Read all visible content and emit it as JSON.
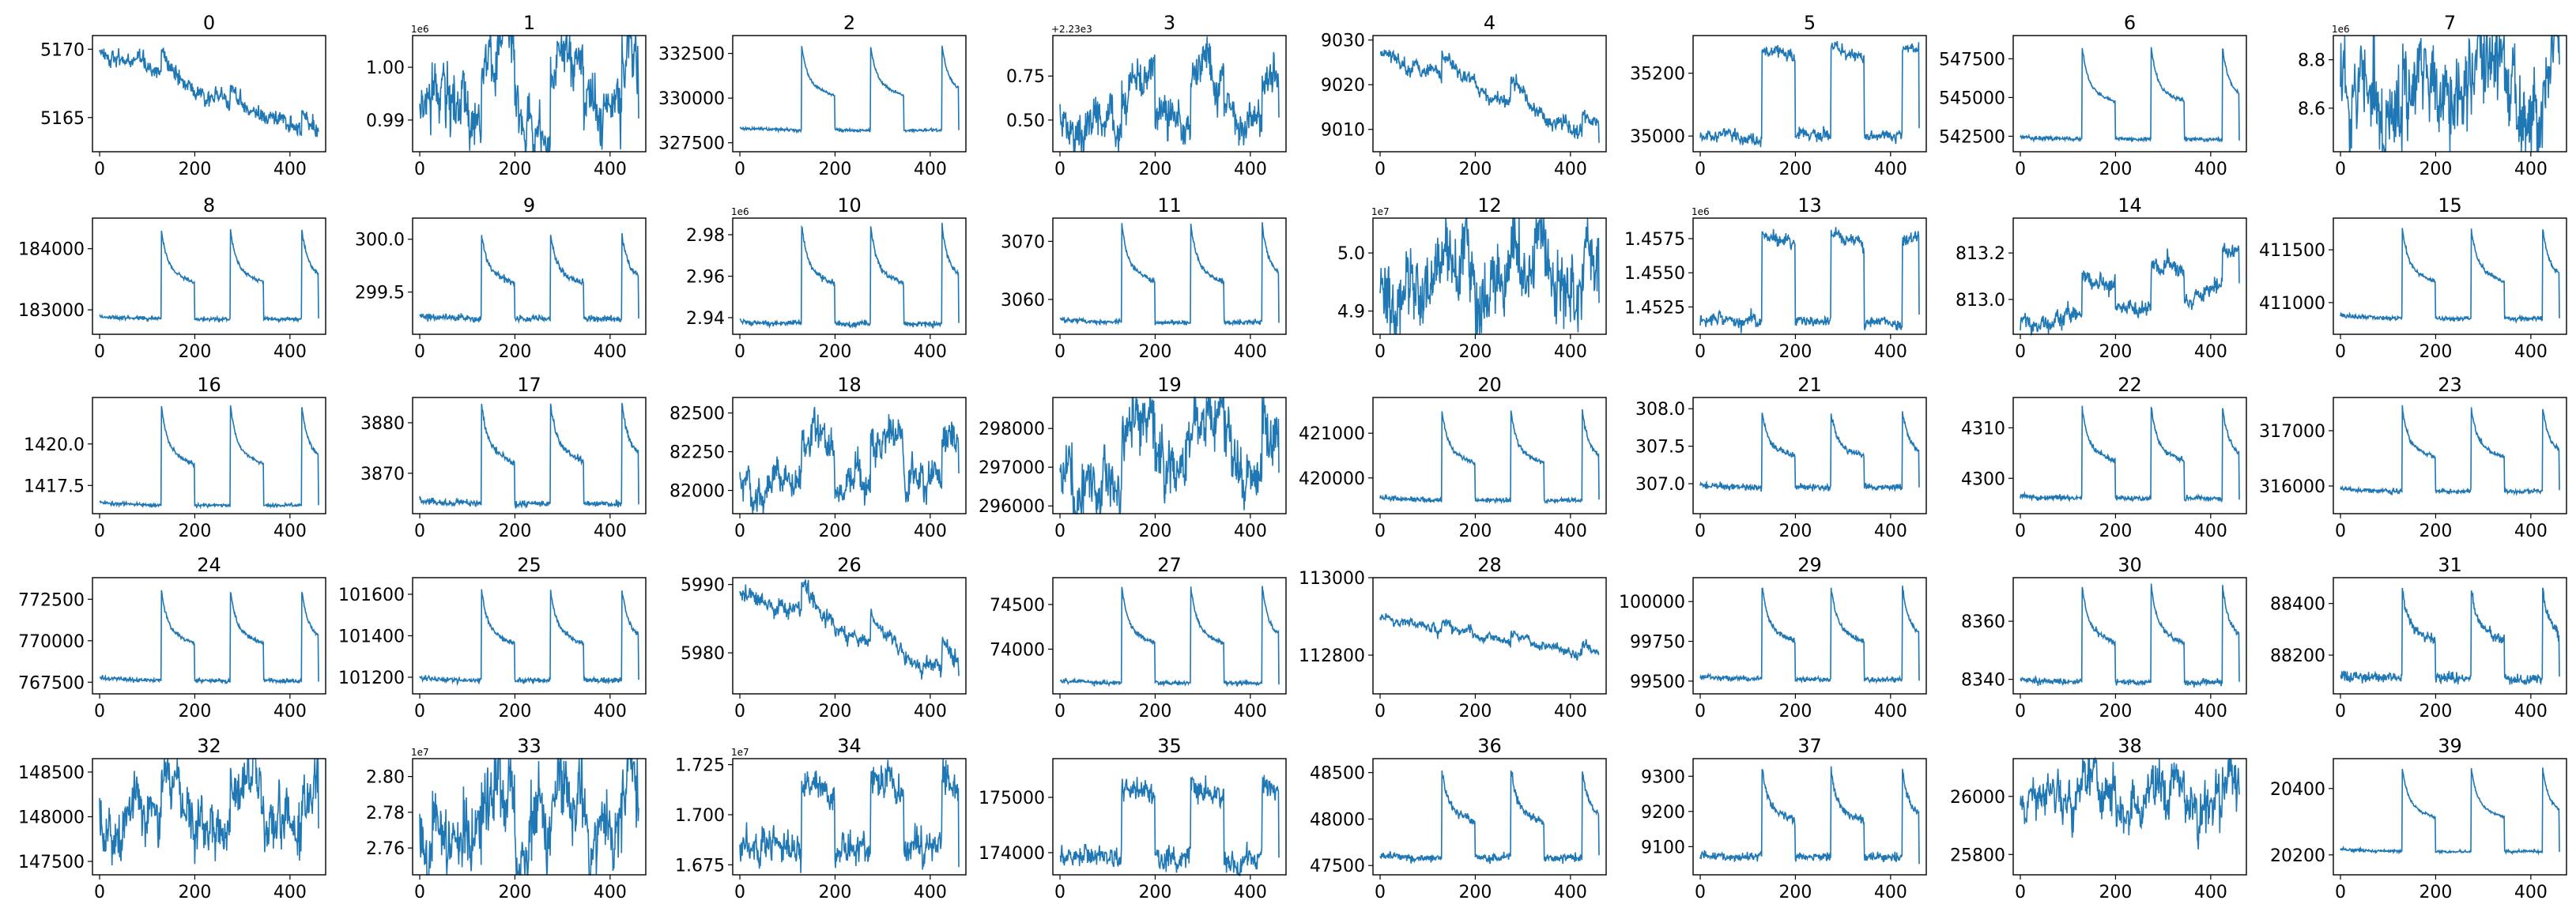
{
  "chart_data": {
    "type": "line",
    "layout": "grid 5 rows x 8 columns",
    "series_color": "#1f77b4",
    "x_range": [
      0,
      460
    ],
    "panels": [
      {
        "title": "0",
        "ylim": [
          5162.5,
          5171
        ],
        "yticks": [
          5165,
          5170
        ],
        "ytick_labels": [
          "5165",
          "5170"
        ],
        "offset_label": "",
        "shape": "drift",
        "params": {
          "start": 5169.8,
          "end": 5163.5,
          "amp": 1.5,
          "noise": 0.25
        }
      },
      {
        "title": "1",
        "ylim": [
          0.984,
          1.006
        ],
        "yticks": [
          0.99,
          1.0
        ],
        "ytick_labels": [
          "0.99",
          "1.00"
        ],
        "offset_label": "1e6",
        "shape": "noisy_plateau",
        "params": {
          "base": 0.9925,
          "amp": 0.009,
          "noise": 0.0018
        }
      },
      {
        "title": "2",
        "ylim": [
          327000,
          333500
        ],
        "yticks": [
          327500,
          330000,
          332500
        ],
        "ytick_labels": [
          "327500",
          "330000",
          "332500"
        ],
        "offset_label": "",
        "shape": "spike_decay",
        "params": {
          "base": 328200,
          "peak": 332900,
          "noise": 40
        }
      },
      {
        "title": "3",
        "ylim": [
          0.32,
          0.98
        ],
        "yticks": [
          0.5,
          0.75
        ],
        "ytick_labels": [
          "0.50",
          "0.75"
        ],
        "offset_label": "+2.23e3",
        "shape": "noisy_plateau",
        "params": {
          "base": 0.5,
          "amp": 0.28,
          "noise": 0.04
        }
      },
      {
        "title": "4",
        "ylim": [
          9005,
          9031
        ],
        "yticks": [
          9010,
          9020,
          9030
        ],
        "ytick_labels": [
          "9010",
          "9020",
          "9030"
        ],
        "offset_label": "",
        "shape": "sawtooth",
        "params": {
          "start": 9027,
          "end": 9008,
          "amp": 5,
          "noise": 0.7
        }
      },
      {
        "title": "5",
        "ylim": [
          34950,
          35320
        ],
        "yticks": [
          35000,
          35200
        ],
        "ytick_labels": [
          "35000",
          "35200"
        ],
        "offset_label": "",
        "shape": "square_wave",
        "params": {
          "base": 35000,
          "amp": 280,
          "noise": 8
        }
      },
      {
        "title": "6",
        "ylim": [
          541500,
          549000
        ],
        "yticks": [
          542500,
          545000,
          547500
        ],
        "ytick_labels": [
          "542500",
          "545000",
          "547500"
        ],
        "offset_label": "",
        "shape": "spike_decay",
        "params": {
          "base": 542300,
          "peak": 548200,
          "noise": 60
        }
      },
      {
        "title": "7",
        "ylim": [
          8.42,
          8.9
        ],
        "yticks": [
          8.6,
          8.8
        ],
        "ytick_labels": [
          "8.6",
          "8.8"
        ],
        "offset_label": "1e6",
        "shape": "noisy_plateau",
        "params": {
          "base": 8.62,
          "amp": 0.13,
          "noise": 0.06
        }
      },
      {
        "title": "8",
        "ylim": [
          182600,
          184500
        ],
        "yticks": [
          183000,
          184000
        ],
        "ytick_labels": [
          "183000",
          "184000"
        ],
        "offset_label": "",
        "shape": "spike_decay",
        "params": {
          "base": 182850,
          "peak": 184300,
          "noise": 15
        }
      },
      {
        "title": "9",
        "ylim": [
          299.1,
          300.2
        ],
        "yticks": [
          299.5,
          300.0
        ],
        "ytick_labels": [
          "299.5",
          "300.0"
        ],
        "offset_label": "",
        "shape": "spike_decay",
        "params": {
          "base": 299.25,
          "peak": 300.05,
          "noise": 0.015
        }
      },
      {
        "title": "10",
        "ylim": [
          2.932,
          2.988
        ],
        "yticks": [
          2.94,
          2.96,
          2.98
        ],
        "ytick_labels": [
          "2.94",
          "2.96",
          "2.98"
        ],
        "offset_label": "1e6",
        "shape": "spike_decay",
        "params": {
          "base": 2.937,
          "peak": 2.984,
          "noise": 0.0006
        }
      },
      {
        "title": "11",
        "ylim": [
          3054,
          3074
        ],
        "yticks": [
          3060,
          3070
        ],
        "ytick_labels": [
          "3060",
          "3070"
        ],
        "offset_label": "",
        "shape": "spike_decay",
        "params": {
          "base": 3056,
          "peak": 3073,
          "noise": 0.2
        }
      },
      {
        "title": "12",
        "ylim": [
          4.86,
          5.06
        ],
        "yticks": [
          4.9,
          5.0
        ],
        "ytick_labels": [
          "4.9",
          "5.0"
        ],
        "offset_label": "1e7",
        "shape": "noisy_plateau",
        "params": {
          "base": 4.945,
          "amp": 0.055,
          "noise": 0.022
        }
      },
      {
        "title": "13",
        "ylim": [
          1.4505,
          1.459
        ],
        "yticks": [
          1.4525,
          1.455,
          1.4575
        ],
        "ytick_labels": [
          "1.4525",
          "1.4550",
          "1.4575"
        ],
        "offset_label": "1e6",
        "shape": "square_wave",
        "params": {
          "base": 1.4515,
          "amp": 0.0062,
          "noise": 0.0002
        }
      },
      {
        "title": "14",
        "ylim": [
          812.85,
          813.35
        ],
        "yticks": [
          813.0,
          813.2
        ],
        "ytick_labels": [
          "813.0",
          "813.2"
        ],
        "offset_label": "",
        "shape": "rise_plateau",
        "params": {
          "start": 812.88,
          "end": 813.05,
          "amp": 0.17,
          "noise": 0.015
        }
      },
      {
        "title": "15",
        "ylim": [
          410700,
          411800
        ],
        "yticks": [
          411000,
          411500
        ],
        "ytick_labels": [
          "411000",
          "411500"
        ],
        "offset_label": "",
        "shape": "spike_decay",
        "params": {
          "base": 410850,
          "peak": 411700,
          "noise": 10
        }
      },
      {
        "title": "16",
        "ylim": [
          1415.8,
          1422.8
        ],
        "yticks": [
          1417.5,
          1420.0
        ],
        "ytick_labels": [
          "1417.5",
          "1420.0"
        ],
        "offset_label": "",
        "shape": "spike_decay",
        "params": {
          "base": 1416.3,
          "peak": 1422.3,
          "noise": 0.05
        }
      },
      {
        "title": "17",
        "ylim": [
          3862,
          3885
        ],
        "yticks": [
          3870,
          3880
        ],
        "ytick_labels": [
          "3870",
          "3880"
        ],
        "offset_label": "",
        "shape": "spike_decay",
        "params": {
          "base": 3864,
          "peak": 3884,
          "noise": 0.3
        }
      },
      {
        "title": "18",
        "ylim": [
          81850,
          82600
        ],
        "yticks": [
          82000,
          82250,
          82500
        ],
        "ytick_labels": [
          "82000",
          "82250",
          "82500"
        ],
        "offset_label": "",
        "shape": "noisy_plateau",
        "params": {
          "base": 82030,
          "amp": 280,
          "noise": 40
        }
      },
      {
        "title": "19",
        "ylim": [
          295800,
          298800
        ],
        "yticks": [
          296000,
          297000,
          298000
        ],
        "ytick_labels": [
          "296000",
          "297000",
          "298000"
        ],
        "offset_label": "",
        "shape": "noisy_plateau",
        "params": {
          "base": 296900,
          "amp": 1300,
          "noise": 260
        }
      },
      {
        "title": "20",
        "ylim": [
          419200,
          421800
        ],
        "yticks": [
          420000,
          421000
        ],
        "ytick_labels": [
          "420000",
          "421000"
        ],
        "offset_label": "",
        "shape": "spike_decay",
        "params": {
          "base": 419500,
          "peak": 421500,
          "noise": 25
        }
      },
      {
        "title": "21",
        "ylim": [
          306.6,
          308.15
        ],
        "yticks": [
          307.0,
          307.5,
          308.0
        ],
        "ytick_labels": [
          "307.0",
          "307.5",
          "308.0"
        ],
        "offset_label": "",
        "shape": "spike_decay",
        "params": {
          "base": 306.95,
          "peak": 307.95,
          "noise": 0.02
        }
      },
      {
        "title": "22",
        "ylim": [
          4293,
          4316
        ],
        "yticks": [
          4300,
          4310
        ],
        "ytick_labels": [
          "4300",
          "4310"
        ],
        "offset_label": "",
        "shape": "spike_decay",
        "params": {
          "base": 4296,
          "peak": 4314,
          "noise": 0.25
        }
      },
      {
        "title": "23",
        "ylim": [
          315500,
          317600
        ],
        "yticks": [
          316000,
          317000
        ],
        "ytick_labels": [
          "316000",
          "317000"
        ],
        "offset_label": "",
        "shape": "spike_decay",
        "params": {
          "base": 315900,
          "peak": 317400,
          "noise": 20
        }
      },
      {
        "title": "24",
        "ylim": [
          766800,
          773800
        ],
        "yticks": [
          767500,
          770000,
          772500
        ],
        "ytick_labels": [
          "767500",
          "770000",
          "772500"
        ],
        "offset_label": "",
        "shape": "spike_decay",
        "params": {
          "base": 767600,
          "peak": 773000,
          "noise": 60
        }
      },
      {
        "title": "25",
        "ylim": [
          101120,
          101680
        ],
        "yticks": [
          101200,
          101400,
          101600
        ],
        "ytick_labels": [
          "101200",
          "101400",
          "101600"
        ],
        "offset_label": "",
        "shape": "spike_decay",
        "params": {
          "base": 101185,
          "peak": 101620,
          "noise": 6
        }
      },
      {
        "title": "26",
        "ylim": [
          5974,
          5991
        ],
        "yticks": [
          5980,
          5990
        ],
        "ytick_labels": [
          "5980",
          "5990"
        ],
        "offset_label": "",
        "shape": "sawtooth",
        "params": {
          "start": 5989,
          "end": 5976,
          "amp": 4,
          "noise": 0.5
        }
      },
      {
        "title": "27",
        "ylim": [
          73500,
          74800
        ],
        "yticks": [
          74000,
          74500
        ],
        "ytick_labels": [
          "74000",
          "74500"
        ],
        "offset_label": "",
        "shape": "spike_decay",
        "params": {
          "base": 73620,
          "peak": 74700,
          "noise": 12
        }
      },
      {
        "title": "28",
        "ylim": [
          112700,
          113000
        ],
        "yticks": [
          112800,
          113000
        ],
        "ytick_labels": [
          "112800",
          "113000"
        ],
        "offset_label": "",
        "shape": "drift",
        "params": {
          "start": 112895,
          "end": 112800,
          "amp": 25,
          "noise": 5
        }
      },
      {
        "title": "29",
        "ylim": [
          99420,
          100150
        ],
        "yticks": [
          99500,
          99750,
          100000
        ],
        "ytick_labels": [
          "99500",
          "99750",
          "100000"
        ],
        "offset_label": "",
        "shape": "spike_decay",
        "params": {
          "base": 99510,
          "peak": 100090,
          "noise": 8
        }
      },
      {
        "title": "30",
        "ylim": [
          8335,
          8375
        ],
        "yticks": [
          8340,
          8360
        ],
        "ytick_labels": [
          "8340",
          "8360"
        ],
        "offset_label": "",
        "shape": "spike_decay",
        "params": {
          "base": 8339,
          "peak": 8372,
          "noise": 0.5
        }
      },
      {
        "title": "31",
        "ylim": [
          88050,
          88500
        ],
        "yticks": [
          88200,
          88400
        ],
        "ytick_labels": [
          "88200",
          "88400"
        ],
        "offset_label": "",
        "shape": "spike_decay",
        "params": {
          "base": 88110,
          "peak": 88460,
          "noise": 10
        }
      },
      {
        "title": "32",
        "ylim": [
          147350,
          148650
        ],
        "yticks": [
          147500,
          148000,
          148500
        ],
        "ytick_labels": [
          "147500",
          "148000",
          "148500"
        ],
        "offset_label": "",
        "shape": "noisy_plateau",
        "params": {
          "base": 147900,
          "amp": 420,
          "noise": 110
        }
      },
      {
        "title": "33",
        "ylim": [
          2.745,
          2.81
        ],
        "yticks": [
          2.76,
          2.78,
          2.8
        ],
        "ytick_labels": [
          "2.76",
          "2.78",
          "2.80"
        ],
        "offset_label": "1e7",
        "shape": "noisy_plateau",
        "params": {
          "base": 2.767,
          "amp": 0.022,
          "noise": 0.0075
        }
      },
      {
        "title": "34",
        "ylim": [
          1.67,
          1.728
        ],
        "yticks": [
          1.675,
          1.7,
          1.725
        ],
        "ytick_labels": [
          "1.675",
          "1.700",
          "1.725"
        ],
        "offset_label": "1e7",
        "shape": "square_wave",
        "params": {
          "base": 1.684,
          "amp": 0.032,
          "noise": 0.0035
        }
      },
      {
        "title": "35",
        "ylim": [
          173600,
          175700
        ],
        "yticks": [
          174000,
          175000
        ],
        "ytick_labels": [
          "174000",
          "175000"
        ],
        "offset_label": "",
        "shape": "square_wave",
        "params": {
          "base": 173900,
          "amp": 1250,
          "noise": 90
        }
      },
      {
        "title": "36",
        "ylim": [
          47400,
          48650
        ],
        "yticks": [
          47500,
          48000,
          48500
        ],
        "ytick_labels": [
          "47500",
          "48000",
          "48500"
        ],
        "offset_label": "",
        "shape": "spike_decay",
        "params": {
          "base": 47580,
          "peak": 48520,
          "noise": 22
        }
      },
      {
        "title": "37",
        "ylim": [
          9020,
          9350
        ],
        "yticks": [
          9100,
          9200,
          9300
        ],
        "ytick_labels": [
          "9100",
          "9200",
          "9300"
        ],
        "offset_label": "",
        "shape": "spike_decay",
        "params": {
          "base": 9070,
          "peak": 9320,
          "noise": 6
        }
      },
      {
        "title": "38",
        "ylim": [
          25730,
          26130
        ],
        "yticks": [
          25800,
          26000
        ],
        "ytick_labels": [
          "25800",
          "26000"
        ],
        "offset_label": "",
        "shape": "noisy_plateau",
        "params": {
          "base": 25980,
          "amp": 90,
          "noise": 28
        }
      },
      {
        "title": "39",
        "ylim": [
          20140,
          20490
        ],
        "yticks": [
          20200,
          20400
        ],
        "ytick_labels": [
          "20200",
          "20400"
        ],
        "offset_label": "",
        "shape": "spike_decay",
        "params": {
          "base": 20210,
          "peak": 20460,
          "noise": 2
        }
      }
    ],
    "xticks": [
      0,
      200,
      400
    ],
    "xtick_labels": [
      "0",
      "200",
      "400"
    ]
  }
}
